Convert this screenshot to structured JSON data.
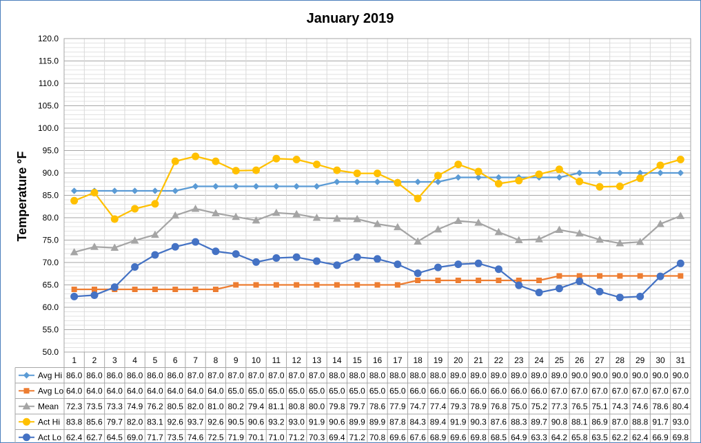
{
  "chart_data": {
    "type": "line",
    "title": "January 2019",
    "ylabel": "Temperature °F",
    "xlabel": "",
    "ylim": [
      50,
      120
    ],
    "y_ticks": [
      "50.0",
      "55.0",
      "60.0",
      "65.0",
      "70.0",
      "75.0",
      "80.0",
      "85.0",
      "90.0",
      "95.0",
      "100.0",
      "105.0",
      "110.0",
      "115.0",
      "120.0"
    ],
    "grid": true,
    "legend": "data-table-left",
    "categories": [
      "1",
      "2",
      "3",
      "4",
      "5",
      "6",
      "7",
      "8",
      "9",
      "10",
      "11",
      "12",
      "13",
      "14",
      "15",
      "16",
      "17",
      "18",
      "19",
      "20",
      "21",
      "22",
      "23",
      "24",
      "25",
      "26",
      "27",
      "28",
      "29",
      "30",
      "31"
    ],
    "series": [
      {
        "name": "Avg Hi",
        "color": "#5b9bd5",
        "marker": "diamond",
        "values": [
          86.0,
          86.0,
          86.0,
          86.0,
          86.0,
          86.0,
          87.0,
          87.0,
          87.0,
          87.0,
          87.0,
          87.0,
          87.0,
          88.0,
          88.0,
          88.0,
          88.0,
          88.0,
          88.0,
          89.0,
          89.0,
          89.0,
          89.0,
          89.0,
          89.0,
          90.0,
          90.0,
          90.0,
          90.0,
          90.0,
          90.0
        ]
      },
      {
        "name": "Avg Lo",
        "color": "#ed7d31",
        "marker": "square",
        "values": [
          64.0,
          64.0,
          64.0,
          64.0,
          64.0,
          64.0,
          64.0,
          64.0,
          65.0,
          65.0,
          65.0,
          65.0,
          65.0,
          65.0,
          65.0,
          65.0,
          65.0,
          66.0,
          66.0,
          66.0,
          66.0,
          66.0,
          66.0,
          66.0,
          67.0,
          67.0,
          67.0,
          67.0,
          67.0,
          67.0,
          67.0
        ]
      },
      {
        "name": "Mean",
        "color": "#a5a5a5",
        "marker": "triangle",
        "values": [
          72.3,
          73.5,
          73.3,
          74.9,
          76.2,
          80.5,
          82.0,
          81.0,
          80.2,
          79.4,
          81.1,
          80.8,
          80.0,
          79.8,
          79.7,
          78.6,
          77.9,
          74.7,
          77.4,
          79.3,
          78.9,
          76.8,
          75.0,
          75.2,
          77.3,
          76.5,
          75.1,
          74.3,
          74.6,
          78.6,
          80.4
        ]
      },
      {
        "name": "Act Hi",
        "color": "#ffc000",
        "marker": "circle",
        "values": [
          83.8,
          85.6,
          79.7,
          82.0,
          83.1,
          92.6,
          93.7,
          92.6,
          90.5,
          90.6,
          93.2,
          93.0,
          91.9,
          90.6,
          89.9,
          89.9,
          87.8,
          84.3,
          89.4,
          91.9,
          90.3,
          87.6,
          88.3,
          89.7,
          90.8,
          88.1,
          86.9,
          87.0,
          88.8,
          91.7,
          93.0
        ]
      },
      {
        "name": "Act Lo",
        "color": "#4472c4",
        "marker": "circle",
        "values": [
          62.4,
          62.7,
          64.5,
          69.0,
          71.7,
          73.5,
          74.6,
          72.5,
          71.9,
          70.1,
          71.0,
          71.2,
          70.3,
          69.4,
          71.2,
          70.8,
          69.6,
          67.6,
          68.9,
          69.6,
          69.8,
          68.5,
          64.9,
          63.3,
          64.2,
          65.8,
          63.5,
          62.2,
          62.4,
          66.9,
          69.8
        ]
      }
    ]
  }
}
